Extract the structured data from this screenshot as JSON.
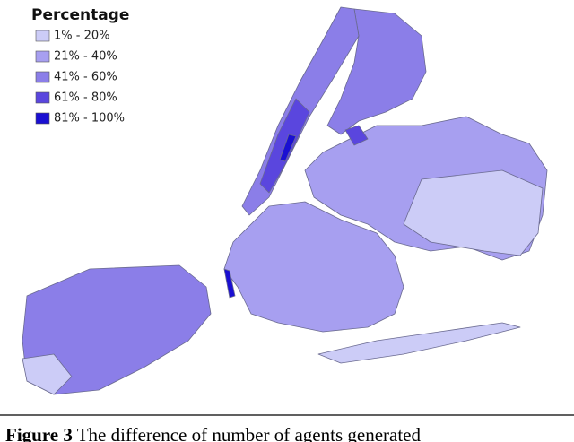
{
  "legend": {
    "title": "Percentage",
    "items": [
      {
        "label": "1% - 20%",
        "color": "#ccccf7"
      },
      {
        "label": "21% - 40%",
        "color": "#a79ff0"
      },
      {
        "label": "41% - 60%",
        "color": "#8b7ee8"
      },
      {
        "label": "61% - 80%",
        "color": "#5a46de"
      },
      {
        "label": "81% - 100%",
        "color": "#1a0fd2"
      }
    ]
  },
  "caption": {
    "label": "Figure 3",
    "text": "The difference of number of agents generated"
  }
}
